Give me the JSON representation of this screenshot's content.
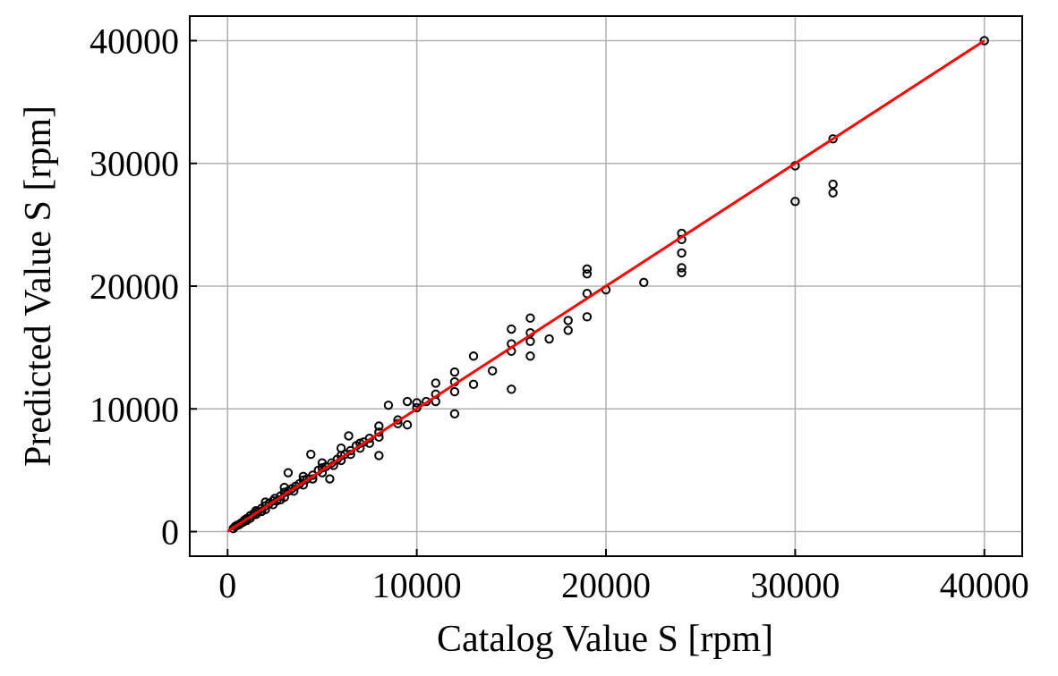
{
  "chart_data": {
    "type": "scatter",
    "title": "",
    "xlabel": "Catalog Value S [rpm]",
    "ylabel": "Predicted Value S [rpm]",
    "xlim": [
      -2000,
      42000
    ],
    "ylim": [
      -2000,
      42000
    ],
    "xticks": [
      0,
      10000,
      20000,
      30000,
      40000
    ],
    "yticks": [
      0,
      10000,
      20000,
      30000,
      40000
    ],
    "xtick_labels": [
      "0",
      "10000",
      "20000",
      "30000",
      "40000"
    ],
    "ytick_labels": [
      "0",
      "10000",
      "20000",
      "30000",
      "40000"
    ],
    "grid": true,
    "colors": {
      "points": "#000000",
      "reference_line": "#ff0000",
      "grid": "#b0b0b0"
    },
    "reference_line": {
      "x": [
        0,
        40000
      ],
      "y": [
        0,
        40000
      ]
    },
    "series": [
      {
        "marker": "open-circle",
        "points": [
          [
            300,
            250
          ],
          [
            400,
            420
          ],
          [
            500,
            520
          ],
          [
            600,
            560
          ],
          [
            700,
            680
          ],
          [
            800,
            760
          ],
          [
            900,
            950
          ],
          [
            1000,
            1050
          ],
          [
            1000,
            900
          ],
          [
            1200,
            1300
          ],
          [
            1200,
            1100
          ],
          [
            1400,
            1500
          ],
          [
            1500,
            1400
          ],
          [
            1500,
            1700
          ],
          [
            1600,
            1600
          ],
          [
            1800,
            1900
          ],
          [
            1800,
            1650
          ],
          [
            2000,
            2100
          ],
          [
            2000,
            1800
          ],
          [
            2000,
            2400
          ],
          [
            2200,
            2300
          ],
          [
            2400,
            2500
          ],
          [
            2400,
            2200
          ],
          [
            2500,
            2700
          ],
          [
            2600,
            2500
          ],
          [
            2800,
            2900
          ],
          [
            2800,
            2600
          ],
          [
            3000,
            3200
          ],
          [
            3000,
            2800
          ],
          [
            3000,
            3600
          ],
          [
            3200,
            3300
          ],
          [
            3200,
            4800
          ],
          [
            3400,
            3500
          ],
          [
            3500,
            3300
          ],
          [
            3600,
            3700
          ],
          [
            3800,
            3900
          ],
          [
            4000,
            4200
          ],
          [
            4000,
            3800
          ],
          [
            4000,
            4500
          ],
          [
            4200,
            4300
          ],
          [
            4400,
            6300
          ],
          [
            4500,
            4600
          ],
          [
            4500,
            4300
          ],
          [
            4800,
            5000
          ],
          [
            5000,
            5200
          ],
          [
            5000,
            4800
          ],
          [
            5000,
            5600
          ],
          [
            5200,
            5300
          ],
          [
            5400,
            4300
          ],
          [
            5500,
            5600
          ],
          [
            5600,
            5400
          ],
          [
            5800,
            5900
          ],
          [
            6000,
            6200
          ],
          [
            6000,
            5800
          ],
          [
            6000,
            6800
          ],
          [
            6200,
            6300
          ],
          [
            6400,
            7800
          ],
          [
            6500,
            6600
          ],
          [
            6500,
            6300
          ],
          [
            6800,
            7000
          ],
          [
            7000,
            7200
          ],
          [
            7000,
            6800
          ],
          [
            7200,
            7300
          ],
          [
            7500,
            7600
          ],
          [
            7500,
            7200
          ],
          [
            8000,
            8100
          ],
          [
            8000,
            6200
          ],
          [
            8000,
            8600
          ],
          [
            8000,
            7700
          ],
          [
            8500,
            10300
          ],
          [
            9000,
            9100
          ],
          [
            9000,
            8800
          ],
          [
            9500,
            10600
          ],
          [
            9500,
            8700
          ],
          [
            10000,
            10100
          ],
          [
            10000,
            10500
          ],
          [
            10500,
            10600
          ],
          [
            11000,
            11200
          ],
          [
            11000,
            10600
          ],
          [
            11000,
            12100
          ],
          [
            12000,
            12200
          ],
          [
            12000,
            13000
          ],
          [
            12000,
            9600
          ],
          [
            12000,
            11400
          ],
          [
            13000,
            14300
          ],
          [
            13000,
            12000
          ],
          [
            14000,
            13100
          ],
          [
            15000,
            14700
          ],
          [
            15000,
            15300
          ],
          [
            15000,
            16500
          ],
          [
            15000,
            11600
          ],
          [
            16000,
            16200
          ],
          [
            16000,
            17400
          ],
          [
            16000,
            15500
          ],
          [
            16000,
            14300
          ],
          [
            17000,
            15700
          ],
          [
            18000,
            17200
          ],
          [
            18000,
            16400
          ],
          [
            19000,
            21400
          ],
          [
            19000,
            21000
          ],
          [
            19000,
            19400
          ],
          [
            19000,
            17500
          ],
          [
            20000,
            19700
          ],
          [
            22000,
            20300
          ],
          [
            24000,
            24300
          ],
          [
            24000,
            23800
          ],
          [
            24000,
            22700
          ],
          [
            24000,
            21500
          ],
          [
            24000,
            21100
          ],
          [
            30000,
            29800
          ],
          [
            30000,
            26900
          ],
          [
            32000,
            32000
          ],
          [
            32000,
            28300
          ],
          [
            32000,
            27600
          ],
          [
            40000,
            40000
          ]
        ]
      }
    ]
  }
}
